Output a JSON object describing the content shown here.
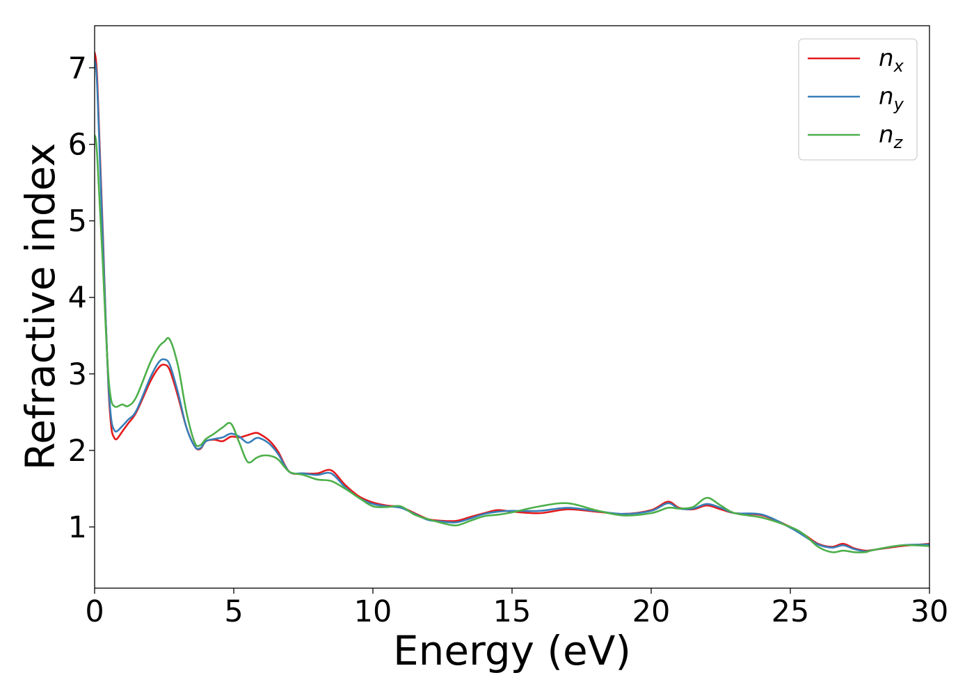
{
  "chart_data": {
    "type": "line",
    "xlabel": "Energy (eV)",
    "ylabel": "Refractive index",
    "xlim": [
      0,
      30
    ],
    "ylim": [
      0.2,
      7.55
    ],
    "xticks": [
      0,
      5,
      10,
      15,
      20,
      25,
      30
    ],
    "yticks": [
      1,
      2,
      3,
      4,
      5,
      6,
      7
    ],
    "grid": false,
    "legend_position": "top-right",
    "series": [
      {
        "name": "n",
        "subscript": "x",
        "color": "#e41a1c",
        "x": [
          0,
          0.05,
          0.1,
          0.2,
          0.3,
          0.4,
          0.5,
          0.6,
          0.7,
          0.8,
          1.0,
          1.2,
          1.5,
          2.0,
          2.3,
          2.5,
          2.7,
          3.0,
          3.3,
          3.6,
          3.8,
          4.0,
          4.3,
          4.6,
          4.9,
          5.2,
          5.5,
          5.8,
          6.0,
          6.3,
          6.6,
          7.0,
          7.5,
          8.0,
          8.5,
          9.0,
          9.5,
          10.0,
          10.5,
          11.0,
          11.5,
          12.0,
          12.5,
          13.0,
          13.5,
          14.0,
          14.5,
          15.0,
          16.0,
          17.0,
          18.0,
          19.0,
          20.0,
          20.6,
          21.0,
          21.5,
          22.0,
          22.5,
          23.0,
          24.0,
          25.0,
          25.5,
          26.0,
          26.5,
          26.9,
          27.3,
          27.7,
          28.0,
          29.0,
          30.0
        ],
        "values": [
          7.2,
          7.1,
          6.8,
          5.8,
          4.8,
          3.7,
          2.8,
          2.3,
          2.17,
          2.15,
          2.25,
          2.35,
          2.5,
          2.9,
          3.08,
          3.12,
          3.05,
          2.7,
          2.3,
          2.05,
          2.02,
          2.12,
          2.14,
          2.12,
          2.18,
          2.17,
          2.2,
          2.23,
          2.2,
          2.12,
          1.98,
          1.72,
          1.7,
          1.7,
          1.74,
          1.55,
          1.4,
          1.32,
          1.28,
          1.26,
          1.18,
          1.1,
          1.08,
          1.08,
          1.13,
          1.18,
          1.22,
          1.2,
          1.18,
          1.23,
          1.2,
          1.17,
          1.22,
          1.33,
          1.25,
          1.23,
          1.28,
          1.23,
          1.18,
          1.15,
          1.0,
          0.9,
          0.78,
          0.74,
          0.78,
          0.72,
          0.69,
          0.7,
          0.75,
          0.78
        ]
      },
      {
        "name": "n",
        "subscript": "y",
        "color": "#377eb8",
        "x": [
          0,
          0.05,
          0.1,
          0.2,
          0.3,
          0.4,
          0.5,
          0.6,
          0.7,
          0.8,
          1.0,
          1.2,
          1.5,
          2.0,
          2.3,
          2.5,
          2.7,
          3.0,
          3.3,
          3.6,
          3.8,
          4.0,
          4.3,
          4.6,
          4.9,
          5.2,
          5.5,
          5.8,
          6.0,
          6.3,
          6.6,
          7.0,
          7.5,
          8.0,
          8.5,
          9.0,
          9.5,
          10.0,
          10.5,
          11.0,
          11.5,
          12.0,
          12.5,
          13.0,
          13.5,
          14.0,
          14.5,
          15.0,
          16.0,
          17.0,
          18.0,
          19.0,
          20.0,
          20.6,
          21.0,
          21.5,
          22.0,
          22.5,
          23.0,
          24.0,
          25.0,
          25.5,
          26.0,
          26.5,
          26.9,
          27.3,
          27.7,
          28.0,
          29.0,
          30.0
        ],
        "values": [
          7.1,
          7.0,
          6.7,
          5.7,
          4.7,
          3.7,
          2.85,
          2.4,
          2.27,
          2.25,
          2.32,
          2.4,
          2.52,
          2.95,
          3.15,
          3.19,
          3.12,
          2.75,
          2.3,
          2.05,
          2.03,
          2.12,
          2.15,
          2.17,
          2.22,
          2.18,
          2.1,
          2.16,
          2.15,
          2.08,
          1.95,
          1.72,
          1.7,
          1.68,
          1.7,
          1.52,
          1.38,
          1.3,
          1.27,
          1.25,
          1.17,
          1.09,
          1.07,
          1.06,
          1.11,
          1.17,
          1.2,
          1.21,
          1.21,
          1.25,
          1.21,
          1.17,
          1.21,
          1.31,
          1.24,
          1.24,
          1.3,
          1.25,
          1.18,
          1.16,
          0.99,
          0.88,
          0.77,
          0.73,
          0.76,
          0.71,
          0.68,
          0.7,
          0.76,
          0.77
        ]
      },
      {
        "name": "n",
        "subscript": "z",
        "color": "#4daf4a",
        "x": [
          0,
          0.05,
          0.1,
          0.2,
          0.3,
          0.4,
          0.5,
          0.6,
          0.7,
          0.8,
          1.0,
          1.2,
          1.5,
          2.0,
          2.3,
          2.5,
          2.7,
          3.0,
          3.3,
          3.6,
          3.8,
          4.0,
          4.3,
          4.6,
          4.9,
          5.2,
          5.5,
          5.8,
          6.0,
          6.3,
          6.6,
          7.0,
          7.5,
          8.0,
          8.5,
          9.0,
          9.5,
          10.0,
          10.5,
          11.0,
          11.5,
          12.0,
          12.5,
          13.0,
          13.5,
          14.0,
          14.5,
          15.0,
          16.0,
          17.0,
          18.0,
          19.0,
          20.0,
          20.6,
          21.0,
          21.5,
          22.0,
          22.5,
          23.0,
          24.0,
          25.0,
          25.5,
          26.0,
          26.5,
          26.9,
          27.3,
          27.7,
          28.0,
          29.0,
          30.0
        ],
        "values": [
          6.12,
          6.05,
          5.8,
          5.1,
          4.4,
          3.6,
          2.95,
          2.65,
          2.58,
          2.57,
          2.6,
          2.58,
          2.7,
          3.15,
          3.35,
          3.42,
          3.45,
          3.1,
          2.5,
          2.1,
          2.07,
          2.15,
          2.22,
          2.3,
          2.35,
          2.1,
          1.85,
          1.9,
          1.93,
          1.93,
          1.88,
          1.72,
          1.68,
          1.62,
          1.6,
          1.5,
          1.38,
          1.27,
          1.26,
          1.27,
          1.16,
          1.1,
          1.05,
          1.02,
          1.08,
          1.14,
          1.16,
          1.19,
          1.27,
          1.31,
          1.22,
          1.15,
          1.18,
          1.25,
          1.24,
          1.26,
          1.38,
          1.28,
          1.18,
          1.12,
          1.0,
          0.9,
          0.74,
          0.67,
          0.69,
          0.67,
          0.67,
          0.7,
          0.76,
          0.75
        ]
      }
    ]
  }
}
